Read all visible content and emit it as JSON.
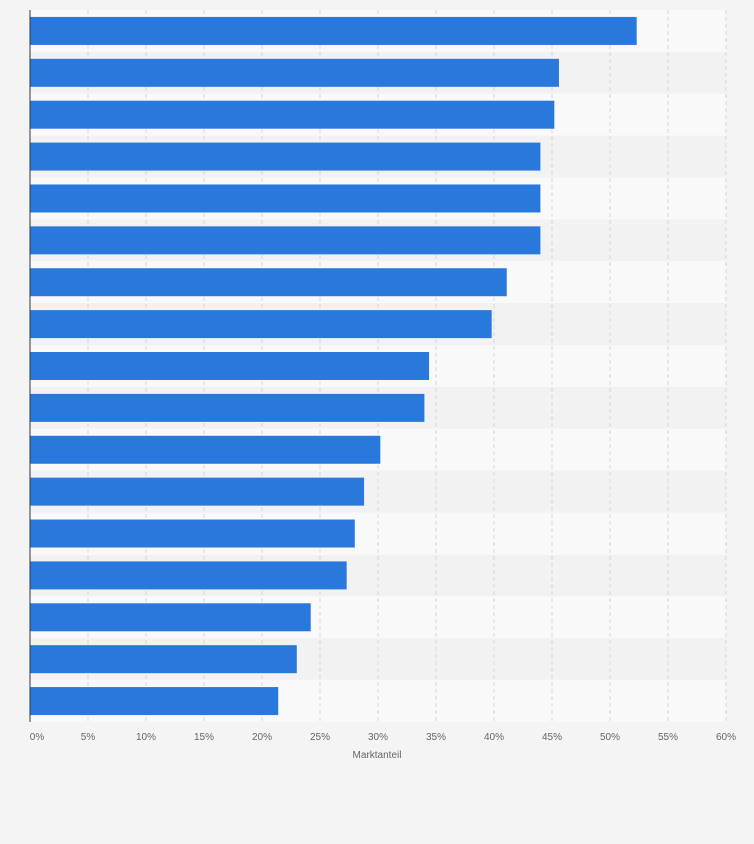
{
  "chart_data": {
    "type": "bar",
    "orientation": "horizontal",
    "title": "",
    "xlabel": "Marktanteil",
    "ylabel": "",
    "xlim": [
      0,
      60
    ],
    "x_ticks": [
      "0%",
      "5%",
      "10%",
      "15%",
      "20%",
      "25%",
      "30%",
      "35%",
      "40%",
      "45%",
      "50%",
      "55%",
      "60%"
    ],
    "x_tick_values": [
      0,
      5,
      10,
      15,
      20,
      25,
      30,
      35,
      40,
      45,
      50,
      55,
      60
    ],
    "categories": [
      "",
      "",
      "",
      "",
      "",
      "",
      "",
      "",
      "",
      "",
      "",
      "",
      "",
      "",
      "",
      "",
      ""
    ],
    "values": [
      52.3,
      45.6,
      45.2,
      44.0,
      44.0,
      44.0,
      41.1,
      39.8,
      34.4,
      34.0,
      30.2,
      28.8,
      28.0,
      27.3,
      24.2,
      23.0,
      21.4
    ],
    "grid": true,
    "legend": "none"
  },
  "colors": {
    "bar": "#2979dd",
    "grid": "#d6d6d6",
    "band_light": "#f9f9f9",
    "band_dark": "#f2f2f2",
    "axis": "#333333",
    "page": "#f4f4f5"
  }
}
